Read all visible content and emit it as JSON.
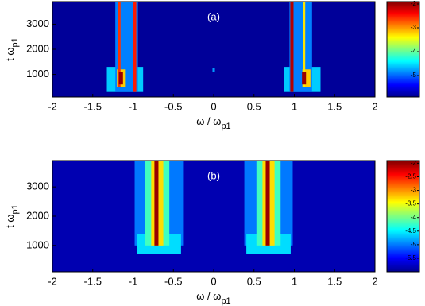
{
  "chart_data": [
    {
      "type": "heatmap",
      "annotation": "(a)",
      "xlabel": "ω / ω",
      "xlabel_sub": "p1",
      "ylabel": "t ω",
      "ylabel_sub": "p1",
      "xlim": [
        -2,
        2
      ],
      "xticks": [
        -2,
        -1.5,
        -1,
        -0.5,
        0,
        0.5,
        1,
        1.5,
        2
      ],
      "ylim": [
        100,
        3900
      ],
      "yticks": [
        1000,
        2000,
        3000
      ],
      "clim": [
        -5.9,
        -1.9
      ],
      "cticks": [
        -2,
        -3,
        -4,
        -5
      ],
      "background_level": -5.8,
      "stripes": [
        {
          "x": -1.1,
          "width": 0.45,
          "t": [
            300,
            1300
          ],
          "level": -4.6
        },
        {
          "x": 1.1,
          "width": 0.45,
          "t": [
            300,
            1300
          ],
          "level": -4.6
        },
        {
          "x": -1.08,
          "width": 0.28,
          "t": [
            300,
            3900
          ],
          "level": -4.9
        },
        {
          "x": 1.08,
          "width": 0.28,
          "t": [
            300,
            3900
          ],
          "level": -4.9
        },
        {
          "x": -1.15,
          "width": 0.1,
          "t": [
            500,
            1200
          ],
          "level": -3.2
        },
        {
          "x": 1.15,
          "width": 0.1,
          "t": [
            500,
            1200
          ],
          "level": -3.2
        },
        {
          "x": -1.17,
          "width": 0.03,
          "t": [
            500,
            3900
          ],
          "level": -2.6
        },
        {
          "x": -1.15,
          "width": 0.05,
          "t": [
            600,
            1100
          ],
          "level": -2
        },
        {
          "x": -0.98,
          "width": 0.04,
          "t": [
            300,
            3900
          ],
          "level": -2.5
        },
        {
          "x": 0.97,
          "width": 0.04,
          "t": [
            300,
            3900
          ],
          "level": -2.1
        },
        {
          "x": 1.12,
          "width": 0.03,
          "t": [
            500,
            3900
          ],
          "level": -3.3
        },
        {
          "x": 1.12,
          "width": 0.05,
          "t": [
            600,
            1100
          ],
          "level": -2
        },
        {
          "x": 0,
          "width": 0.03,
          "t": [
            1100,
            1250
          ],
          "level": -4.8
        }
      ]
    },
    {
      "type": "heatmap",
      "annotation": "(b)",
      "xlabel": "ω / ω",
      "xlabel_sub": "p1",
      "ylabel": "t ω",
      "ylabel_sub": "p1",
      "xlim": [
        -2,
        2
      ],
      "xticks": [
        -2,
        -1.5,
        -1,
        -0.5,
        0,
        0.5,
        1,
        1.5,
        2
      ],
      "ylim": [
        100,
        3900
      ],
      "yticks": [
        1000,
        2000,
        3000
      ],
      "clim": [
        -6.0,
        -1.9
      ],
      "cticks": [
        -2,
        -2.5,
        -3,
        -3.5,
        -4,
        -4.5,
        -5,
        -5.5
      ],
      "background_level": -5.8,
      "stripes": [
        {
          "x": -0.68,
          "width": 0.6,
          "t": [
            1000,
            3900
          ],
          "level": -5
        },
        {
          "x": 0.68,
          "width": 0.6,
          "t": [
            1000,
            3900
          ],
          "level": -5
        },
        {
          "x": -0.68,
          "width": 0.55,
          "t": [
            700,
            1400
          ],
          "level": -4.6
        },
        {
          "x": 0.68,
          "width": 0.55,
          "t": [
            700,
            1400
          ],
          "level": -4.6
        },
        {
          "x": -0.7,
          "width": 0.3,
          "t": [
            1000,
            3900
          ],
          "level": -4.2
        },
        {
          "x": 0.68,
          "width": 0.3,
          "t": [
            1000,
            3900
          ],
          "level": -4.2
        },
        {
          "x": -0.7,
          "width": 0.15,
          "t": [
            1000,
            3900
          ],
          "level": -3.3
        },
        {
          "x": 0.68,
          "width": 0.15,
          "t": [
            1000,
            3900
          ],
          "level": -3.3
        },
        {
          "x": -0.71,
          "width": 0.05,
          "t": [
            1000,
            3900
          ],
          "level": -2
        },
        {
          "x": 0.67,
          "width": 0.05,
          "t": [
            1000,
            3900
          ],
          "level": -2
        }
      ]
    }
  ]
}
